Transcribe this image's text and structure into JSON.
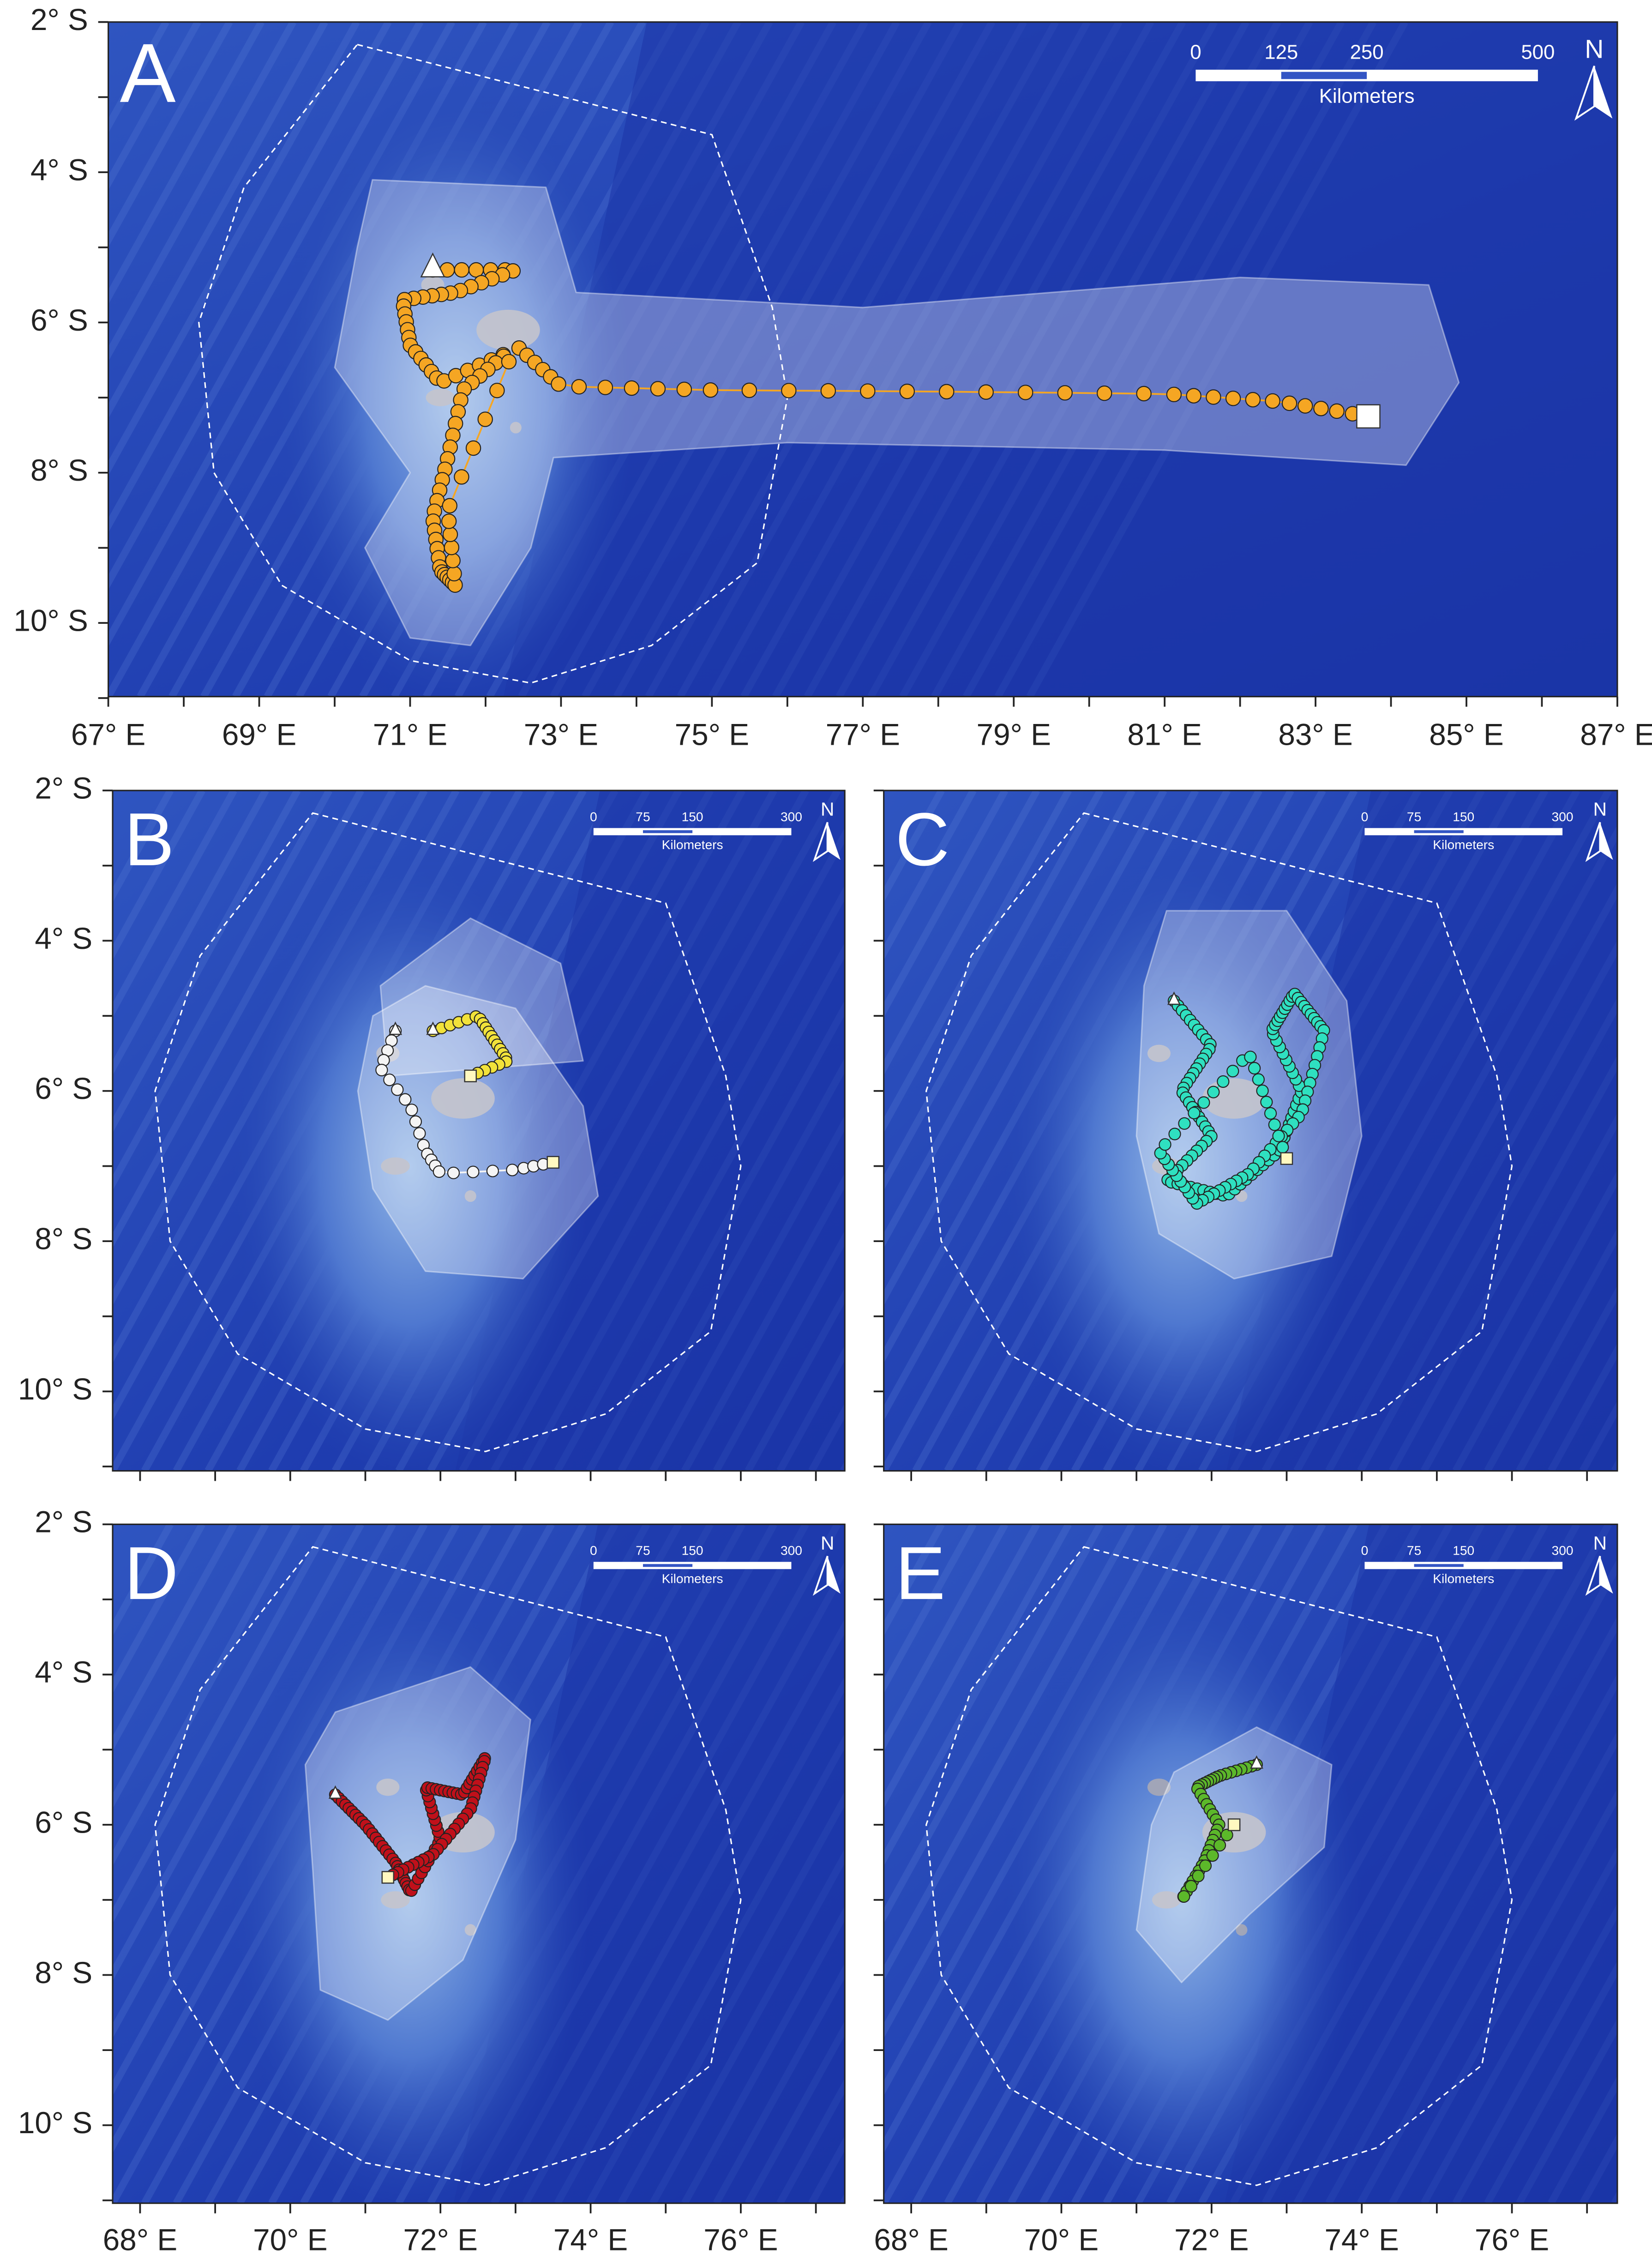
{
  "panels": [
    {
      "label": "A",
      "lat_labels": [
        "2° S",
        "4° S",
        "6° S",
        "8° S",
        "10° S"
      ],
      "lon_labels": [
        "67° E",
        "69° E",
        "71° E",
        "73° E",
        "75° E",
        "77° E",
        "79° E",
        "81° E",
        "83° E",
        "85° E",
        "87° E"
      ],
      "scale_labels": [
        "0",
        "125",
        "250",
        "500"
      ],
      "scale_unit": "Kilometers",
      "north": "N"
    },
    {
      "label": "B",
      "lat_labels": [
        "2° S",
        "4° S",
        "6° S",
        "8° S",
        "10° S"
      ],
      "scale_labels": [
        "0",
        "75",
        "150",
        "300"
      ],
      "scale_unit": "Kilometers",
      "north": "N"
    },
    {
      "label": "C",
      "scale_labels": [
        "0",
        "75",
        "150",
        "300"
      ],
      "scale_unit": "Kilometers",
      "north": "N"
    },
    {
      "label": "D",
      "lat_labels": [
        "2° S",
        "4° S",
        "6° S",
        "8° S",
        "10° S"
      ],
      "lon_labels": [
        "68° E",
        "70° E",
        "72° E",
        "74° E",
        "76° E"
      ],
      "scale_labels": [
        "0",
        "75",
        "150",
        "300"
      ],
      "scale_unit": "Kilometers",
      "north": "N"
    },
    {
      "label": "E",
      "lon_labels": [
        "68° E",
        "70° E",
        "72° E",
        "74° E",
        "76° E"
      ],
      "scale_labels": [
        "0",
        "75",
        "150",
        "300"
      ],
      "scale_unit": "Kilometers",
      "north": "N"
    }
  ]
}
